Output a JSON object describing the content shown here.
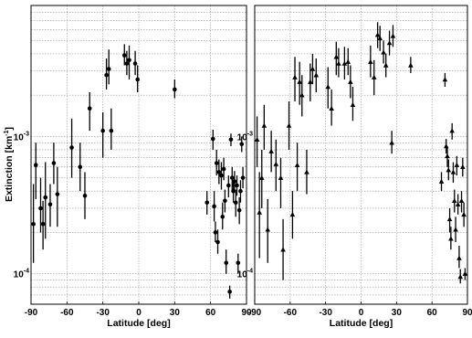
{
  "chart_data": [
    {
      "type": "scatter",
      "panel": "left",
      "marker": "circle",
      "ylabel": "Extinction [km",
      "ylabel_sup": "-1",
      "ylabel_tail": "]",
      "xlabel": "Latitude [deg]",
      "xlim": [
        -90,
        90
      ],
      "ylim": [
        6e-05,
        0.009
      ],
      "yscale": "log",
      "xticks": [
        -90,
        -60,
        -30,
        0,
        30,
        60,
        90
      ],
      "yticks": [
        {
          "value": 0.001,
          "base": "10",
          "exp": "-3"
        },
        {
          "value": 0.0001,
          "base": "10",
          "exp": "-4"
        }
      ],
      "grid": true,
      "points": [
        {
          "x": -88,
          "y": 0.00023,
          "lo": 0.00012,
          "hi": 0.00045
        },
        {
          "x": -86,
          "y": 0.00062,
          "lo": 0.00035,
          "hi": 0.0009
        },
        {
          "x": -82,
          "y": 0.0003,
          "lo": 0.0002,
          "hi": 0.0005
        },
        {
          "x": -80,
          "y": 0.00023,
          "lo": 0.00015,
          "hi": 0.00034
        },
        {
          "x": -78,
          "y": 0.00036,
          "lo": 0.00018,
          "hi": 0.00065
        },
        {
          "x": -74,
          "y": 0.00032,
          "lo": 0.00022,
          "hi": 0.00045
        },
        {
          "x": -71,
          "y": 0.00064,
          "lo": 0.00045,
          "hi": 0.0009
        },
        {
          "x": -68,
          "y": 0.00038,
          "lo": 0.00022,
          "hi": 0.0006
        },
        {
          "x": -56,
          "y": 0.00083,
          "lo": 0.0005,
          "hi": 0.00135
        },
        {
          "x": -49,
          "y": 0.0006,
          "lo": 0.0004,
          "hi": 0.0009
        },
        {
          "x": -45,
          "y": 0.00037,
          "lo": 0.00025,
          "hi": 0.00055
        },
        {
          "x": -41,
          "y": 0.0016,
          "lo": 0.0011,
          "hi": 0.0021
        },
        {
          "x": -30,
          "y": 0.0011,
          "lo": 0.0007,
          "hi": 0.0015
        },
        {
          "x": -27,
          "y": 0.0028,
          "lo": 0.0022,
          "hi": 0.0037
        },
        {
          "x": -25,
          "y": 0.0031,
          "lo": 0.0024,
          "hi": 0.0043
        },
        {
          "x": -23,
          "y": 0.0011,
          "lo": 0.0008,
          "hi": 0.0016
        },
        {
          "x": -12,
          "y": 0.0039,
          "lo": 0.0033,
          "hi": 0.0047
        },
        {
          "x": -10,
          "y": 0.0034,
          "lo": 0.0028,
          "hi": 0.0042
        },
        {
          "x": -8,
          "y": 0.0036,
          "lo": 0.0026,
          "hi": 0.0046
        },
        {
          "x": -3,
          "y": 0.0034,
          "lo": 0.0028,
          "hi": 0.0042
        },
        {
          "x": -1,
          "y": 0.0026,
          "lo": 0.0021,
          "hi": 0.0033
        },
        {
          "x": 30,
          "y": 0.0022,
          "lo": 0.0019,
          "hi": 0.0026
        },
        {
          "x": 57,
          "y": 0.00033,
          "lo": 0.00027,
          "hi": 0.0004
        },
        {
          "x": 62,
          "y": 0.00096,
          "lo": 0.0008,
          "hi": 0.00112
        },
        {
          "x": 63,
          "y": 0.00031,
          "lo": 0.00024,
          "hi": 0.0004
        },
        {
          "x": 64,
          "y": 0.0002,
          "lo": 0.00017,
          "hi": 0.00024
        },
        {
          "x": 65,
          "y": 0.00064,
          "lo": 0.00052,
          "hi": 0.0008
        },
        {
          "x": 66,
          "y": 0.00017,
          "lo": 0.00014,
          "hi": 0.00021
        },
        {
          "x": 67,
          "y": 0.00055,
          "lo": 0.00045,
          "hi": 0.00068
        },
        {
          "x": 69,
          "y": 0.00052,
          "lo": 0.00041,
          "hi": 0.00065
        },
        {
          "x": 70,
          "y": 0.00026,
          "lo": 0.00021,
          "hi": 0.00033
        },
        {
          "x": 71,
          "y": 0.00058,
          "lo": 0.00048,
          "hi": 0.0007
        },
        {
          "x": 72,
          "y": 0.00034,
          "lo": 0.00028,
          "hi": 0.00041
        },
        {
          "x": 73,
          "y": 0.00012,
          "lo": 0.0001,
          "hi": 0.00015
        },
        {
          "x": 75,
          "y": 0.00044,
          "lo": 0.00036,
          "hi": 0.00052
        },
        {
          "x": 76,
          "y": 7.4e-05,
          "lo": 6.6e-05,
          "hi": 8.2e-05
        },
        {
          "x": 77,
          "y": 0.00095,
          "lo": 0.00085,
          "hi": 0.00105
        },
        {
          "x": 78,
          "y": 0.0005,
          "lo": 0.0004,
          "hi": 0.0006
        },
        {
          "x": 79,
          "y": 0.0004,
          "lo": 0.00033,
          "hi": 0.00048
        },
        {
          "x": 80,
          "y": 0.00047,
          "lo": 0.0004,
          "hi": 0.00056
        },
        {
          "x": 81,
          "y": 0.00033,
          "lo": 0.00026,
          "hi": 0.00041
        },
        {
          "x": 82,
          "y": 0.00044,
          "lo": 0.00037,
          "hi": 0.00052
        },
        {
          "x": 83,
          "y": 0.00012,
          "lo": 0.0001,
          "hi": 0.00014
        },
        {
          "x": 84,
          "y": 0.00029,
          "lo": 0.00023,
          "hi": 0.00036
        },
        {
          "x": 85,
          "y": 0.0004,
          "lo": 0.00033,
          "hi": 0.00048
        },
        {
          "x": 86,
          "y": 0.00088,
          "lo": 0.00077,
          "hi": 0.001
        },
        {
          "x": 87,
          "y": 0.0005,
          "lo": 0.00042,
          "hi": 0.0006
        }
      ]
    },
    {
      "type": "scatter",
      "panel": "right",
      "marker": "triangle",
      "xlabel": "Latitude [deg]",
      "xlim": [
        -90,
        90
      ],
      "ylim": [
        6e-05,
        0.009
      ],
      "yscale": "log",
      "xticks": [
        -90,
        -60,
        -30,
        0,
        30,
        60,
        90
      ],
      "yticks": [
        {
          "value": 0.001,
          "base": "10",
          "exp": "-3"
        },
        {
          "value": 0.0001,
          "base": "10",
          "exp": "-4"
        }
      ],
      "grid": true,
      "points": [
        {
          "x": -88,
          "y": 0.00095,
          "lo": 0.0006,
          "hi": 0.0014
        },
        {
          "x": -86,
          "y": 0.00028,
          "lo": 0.00013,
          "hi": 0.00055
        },
        {
          "x": -84,
          "y": 0.0005,
          "lo": 0.0003,
          "hi": 0.0008
        },
        {
          "x": -82,
          "y": 0.0012,
          "lo": 0.0008,
          "hi": 0.0017
        },
        {
          "x": -79,
          "y": 0.00021,
          "lo": 0.00012,
          "hi": 0.00035
        },
        {
          "x": -76,
          "y": 0.00078,
          "lo": 0.00055,
          "hi": 0.0011
        },
        {
          "x": -72,
          "y": 0.00063,
          "lo": 0.0004,
          "hi": 0.00095
        },
        {
          "x": -68,
          "y": 0.0005,
          "lo": 0.0003,
          "hi": 0.0007
        },
        {
          "x": -66,
          "y": 0.00015,
          "lo": 9e-05,
          "hi": 0.00025
        },
        {
          "x": -61,
          "y": 0.0012,
          "lo": 0.0008,
          "hi": 0.0018
        },
        {
          "x": -58,
          "y": 0.00027,
          "lo": 0.00018,
          "hi": 0.0004
        },
        {
          "x": -56,
          "y": 0.0027,
          "lo": 0.0018,
          "hi": 0.0038
        },
        {
          "x": -54,
          "y": 0.00062,
          "lo": 0.0004,
          "hi": 0.0009
        },
        {
          "x": -52,
          "y": 0.0025,
          "lo": 0.0017,
          "hi": 0.0035
        },
        {
          "x": -50,
          "y": 0.002,
          "lo": 0.0014,
          "hi": 0.0028
        },
        {
          "x": -46,
          "y": 0.00055,
          "lo": 0.00038,
          "hi": 0.0008
        },
        {
          "x": -43,
          "y": 0.0025,
          "lo": 0.0018,
          "hi": 0.0034
        },
        {
          "x": -41,
          "y": 0.0031,
          "lo": 0.0024,
          "hi": 0.004
        },
        {
          "x": -38,
          "y": 0.0028,
          "lo": 0.0021,
          "hi": 0.0037
        },
        {
          "x": -28,
          "y": 0.0023,
          "lo": 0.0016,
          "hi": 0.0032
        },
        {
          "x": -25,
          "y": 0.0016,
          "lo": 0.0012,
          "hi": 0.0022
        },
        {
          "x": -21,
          "y": 0.0038,
          "lo": 0.0028,
          "hi": 0.0049
        },
        {
          "x": -19,
          "y": 0.0034,
          "lo": 0.0027,
          "hi": 0.0044
        },
        {
          "x": -14,
          "y": 0.0034,
          "lo": 0.0026,
          "hi": 0.0045
        },
        {
          "x": -11,
          "y": 0.0035,
          "lo": 0.0028,
          "hi": 0.0044
        },
        {
          "x": -9,
          "y": 0.0025,
          "lo": 0.0019,
          "hi": 0.0033
        },
        {
          "x": -7,
          "y": 0.0017,
          "lo": 0.0013,
          "hi": 0.0023
        },
        {
          "x": 8,
          "y": 0.0035,
          "lo": 0.0027,
          "hi": 0.0046
        },
        {
          "x": 11,
          "y": 0.0027,
          "lo": 0.002,
          "hi": 0.0036
        },
        {
          "x": 14,
          "y": 0.0055,
          "lo": 0.0044,
          "hi": 0.0068
        },
        {
          "x": 16,
          "y": 0.0052,
          "lo": 0.0042,
          "hi": 0.0064
        },
        {
          "x": 19,
          "y": 0.0041,
          "lo": 0.0034,
          "hi": 0.005
        },
        {
          "x": 21,
          "y": 0.0033,
          "lo": 0.0027,
          "hi": 0.004
        },
        {
          "x": 24,
          "y": 0.0048,
          "lo": 0.0039,
          "hi": 0.0059
        },
        {
          "x": 26,
          "y": 0.0009,
          "lo": 0.00075,
          "hi": 0.0011
        },
        {
          "x": 27,
          "y": 0.0054,
          "lo": 0.0045,
          "hi": 0.0065
        },
        {
          "x": 42,
          "y": 0.0033,
          "lo": 0.0029,
          "hi": 0.0038
        },
        {
          "x": 68,
          "y": 0.00047,
          "lo": 0.0004,
          "hi": 0.00055
        },
        {
          "x": 71,
          "y": 0.0026,
          "lo": 0.0023,
          "hi": 0.0029
        },
        {
          "x": 72,
          "y": 0.00085,
          "lo": 0.00075,
          "hi": 0.00096
        },
        {
          "x": 73,
          "y": 0.00072,
          "lo": 0.0006,
          "hi": 0.00085
        },
        {
          "x": 74,
          "y": 0.00057,
          "lo": 0.00048,
          "hi": 0.00068
        },
        {
          "x": 75,
          "y": 0.00025,
          "lo": 0.0002,
          "hi": 0.0003
        },
        {
          "x": 76,
          "y": 0.00018,
          "lo": 0.00015,
          "hi": 0.00022
        },
        {
          "x": 77,
          "y": 0.0011,
          "lo": 0.00095,
          "hi": 0.00125
        },
        {
          "x": 78,
          "y": 0.00055,
          "lo": 0.00046,
          "hi": 0.00065
        },
        {
          "x": 79,
          "y": 0.00034,
          "lo": 0.00028,
          "hi": 0.00041
        },
        {
          "x": 80,
          "y": 0.00021,
          "lo": 0.00017,
          "hi": 0.00026
        },
        {
          "x": 81,
          "y": 0.00062,
          "lo": 0.00052,
          "hi": 0.00072
        },
        {
          "x": 82,
          "y": 0.00032,
          "lo": 0.00027,
          "hi": 0.00038
        },
        {
          "x": 83,
          "y": 0.00013,
          "lo": 0.00011,
          "hi": 0.00016
        },
        {
          "x": 84,
          "y": 9.5e-05,
          "lo": 8.5e-05,
          "hi": 0.000108
        },
        {
          "x": 85,
          "y": 0.00034,
          "lo": 0.00028,
          "hi": 0.0004
        },
        {
          "x": 86,
          "y": 0.0006,
          "lo": 0.00051,
          "hi": 0.0007
        },
        {
          "x": 87,
          "y": 0.00027,
          "lo": 0.00022,
          "hi": 0.00033
        },
        {
          "x": 88,
          "y": 0.0001,
          "lo": 9e-05,
          "hi": 0.00011
        }
      ]
    }
  ]
}
